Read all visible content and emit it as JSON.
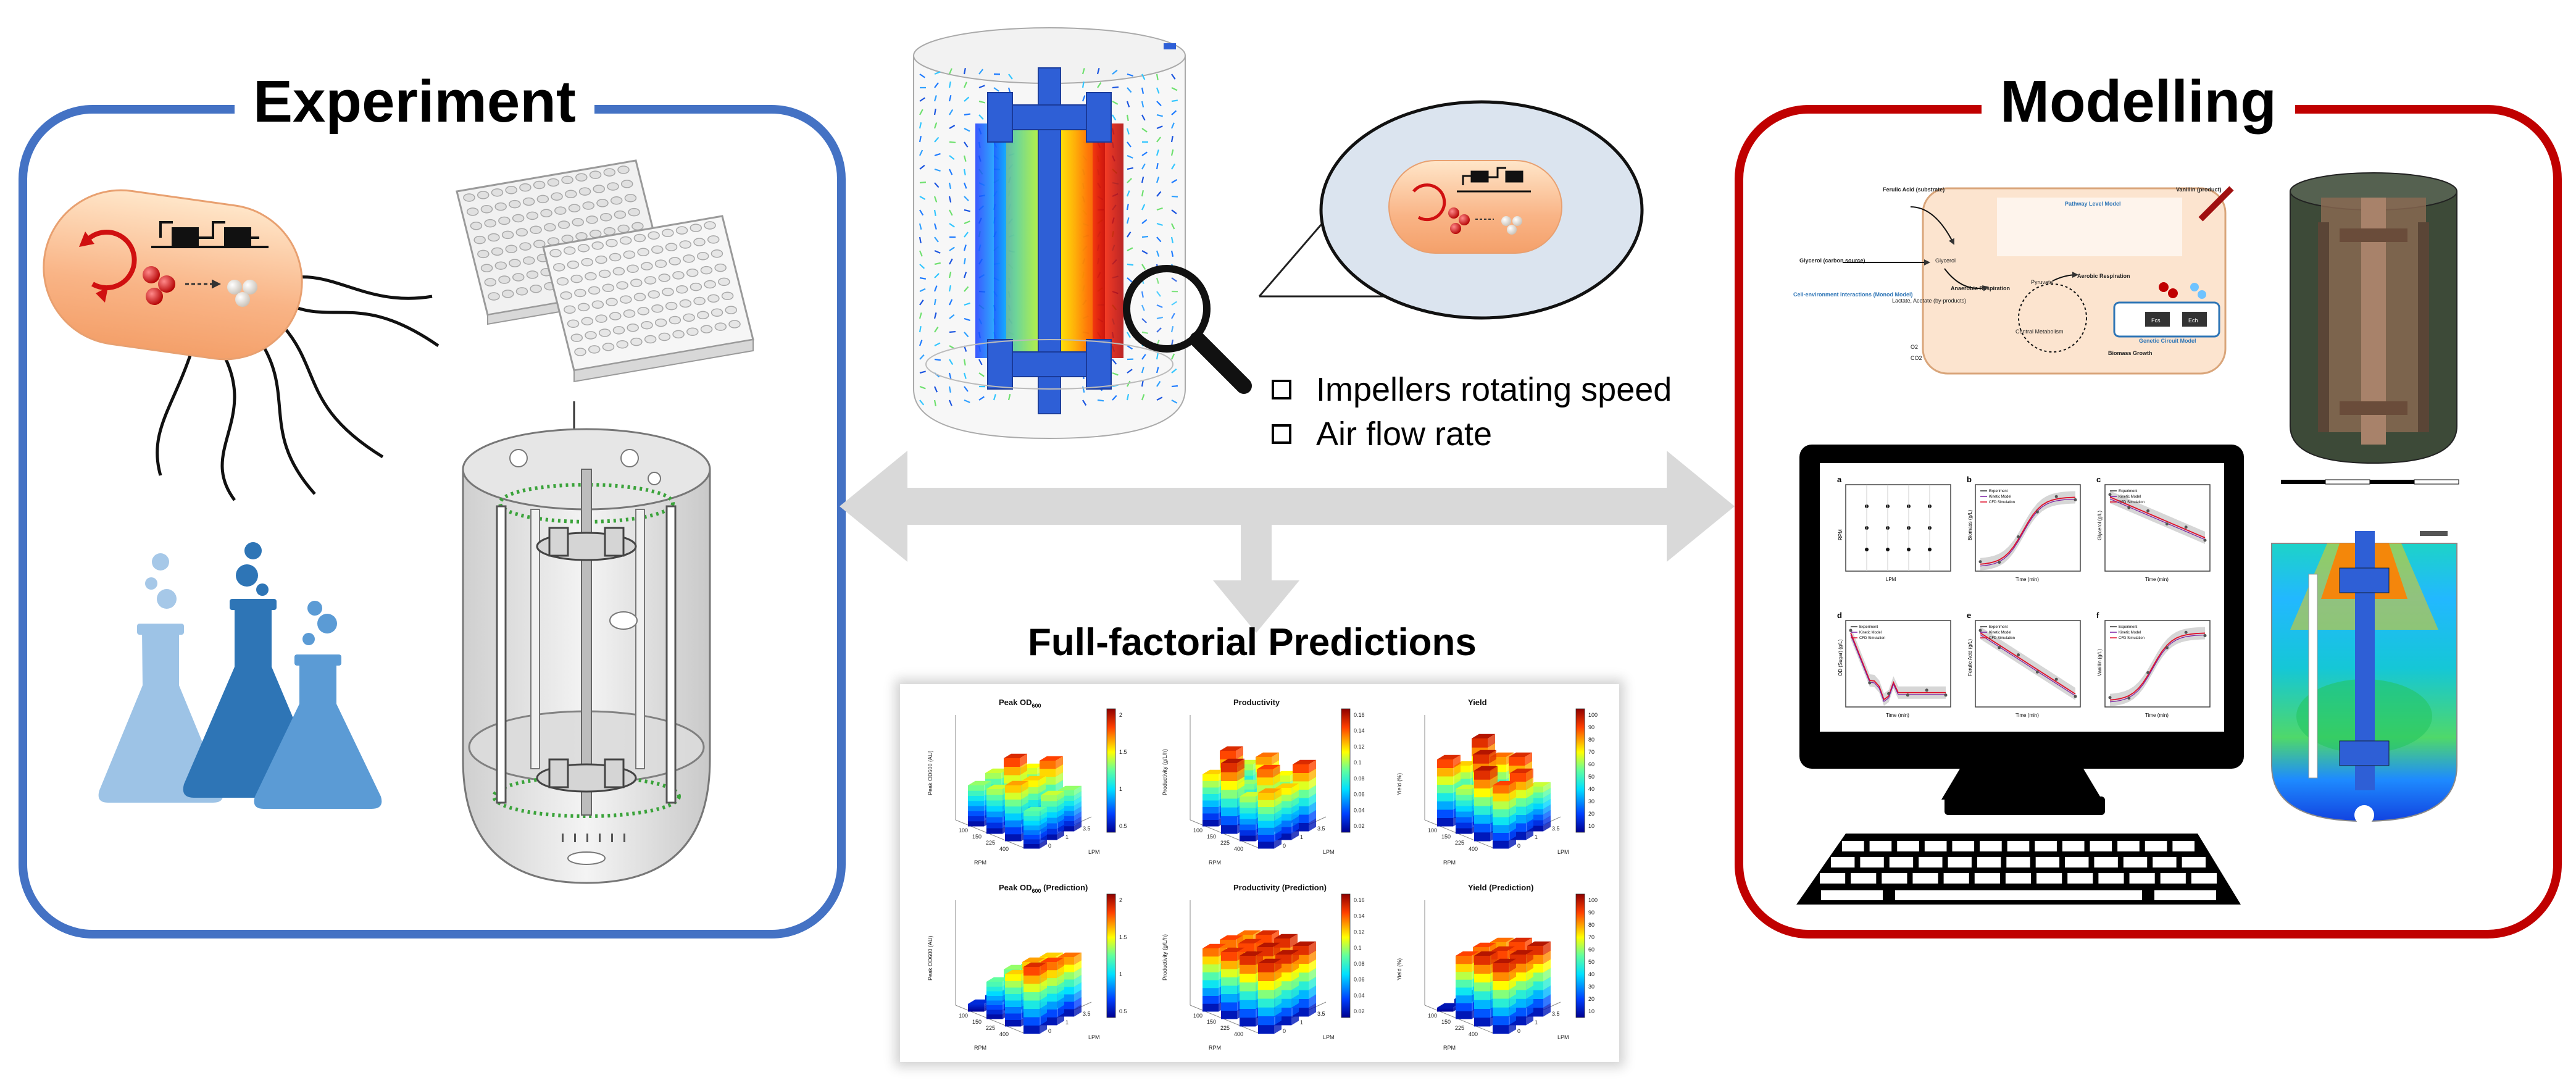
{
  "experiment": {
    "title": "Experiment"
  },
  "modelling": {
    "title": "Modelling",
    "pathway": {
      "ferulic_acid": "Ferulic Acid (substrate)",
      "vanillin": "Vanillin (product)",
      "pathway_model": "Pathway Level Model",
      "glycerol_source": "Glycerol (carbon source)",
      "glycerol": "Glycerol",
      "cell_env": "Cell-environment Interactions (Monod Model)",
      "byproducts": "Lactate, Acetate (by-products)",
      "anaerobic": "Anaerobic Respiration",
      "pyruvate": "Pyruvate",
      "aerobic": "Aerobic Respiration",
      "central": "Central Metabolism",
      "biomass": "Biomass Growth",
      "genetic": "Genetic Circuit Model",
      "fcs": "Fcs",
      "ech": "Ech",
      "o2": "O2",
      "co2": "CO2"
    },
    "monitor_panels": [
      {
        "letter": "a",
        "ylabel": "RPM",
        "xlabel": "LPM"
      },
      {
        "letter": "b",
        "ylabel": "Biomass (g/L)",
        "xlabel": "Time (min)"
      },
      {
        "letter": "c",
        "ylabel": "Glycerol (g/L)",
        "xlabel": "Time (min)"
      },
      {
        "letter": "d",
        "ylabel": "OD (Sugar) (g/L)",
        "xlabel": "Time (min)"
      },
      {
        "letter": "e",
        "ylabel": "Ferulic Acid (g/L)",
        "xlabel": "Time (min)"
      },
      {
        "letter": "f",
        "ylabel": "Vanillin (g/L)",
        "xlabel": "Time (min)"
      }
    ],
    "legend": [
      "Experiment",
      "Kinetic Model",
      "CFD Simulation"
    ]
  },
  "cfd": {
    "checklist": [
      "Impellers rotating speed",
      "Air flow rate"
    ]
  },
  "predictions": {
    "title": "Full-factorial Predictions",
    "panels": [
      {
        "title": "Peak OD",
        "sub": "600",
        "suffix": "",
        "zlabel": "Peak OD600 (AU)",
        "cb_ticks": [
          "2",
          "1.5",
          "1",
          "0.5"
        ]
      },
      {
        "title": "Productivity",
        "sub": "",
        "suffix": "",
        "zlabel": "Productivity (g/L/h)",
        "cb_ticks": [
          "0.16",
          "0.14",
          "0.12",
          "0.1",
          "0.08",
          "0.06",
          "0.04",
          "0.02"
        ]
      },
      {
        "title": "Yield",
        "sub": "",
        "suffix": "",
        "zlabel": "Yield (%)",
        "cb_ticks": [
          "100",
          "90",
          "80",
          "70",
          "60",
          "50",
          "40",
          "30",
          "20",
          "10"
        ]
      },
      {
        "title": "Peak OD",
        "sub": "600",
        "suffix": " (Prediction)",
        "zlabel": "Peak OD600 (AU)",
        "cb_ticks": [
          "2",
          "1.5",
          "1",
          "0.5"
        ]
      },
      {
        "title": "Productivity (Prediction)",
        "sub": "",
        "suffix": "",
        "zlabel": "Productivity (g/L/h)",
        "cb_ticks": [
          "0.16",
          "0.14",
          "0.12",
          "0.1",
          "0.08",
          "0.06",
          "0.04",
          "0.02"
        ]
      },
      {
        "title": "Yield (Prediction)",
        "sub": "",
        "suffix": "",
        "zlabel": "Yield (%)",
        "cb_ticks": [
          "100",
          "90",
          "80",
          "70",
          "60",
          "50",
          "40",
          "30",
          "20",
          "10"
        ]
      }
    ],
    "rpm_ticks": [
      "100",
      "150",
      "225",
      "400"
    ],
    "lpm_ticks": [
      "0",
      "1",
      "3.5"
    ],
    "rpm_label": "RPM",
    "lpm_label": "LPM"
  },
  "colors": {
    "experiment_border": "#4472C4",
    "modelling_border": "#C00000",
    "arrow": "#D9D9D9",
    "flask_light": "#9DC3E6",
    "flask_mid": "#2E75B6",
    "flask_dark": "#5B9BD5",
    "impeller": "#2E5FD6"
  },
  "icons": [
    "bacterium-icon",
    "well-plate-icon",
    "flask-icon",
    "bioreactor-icon",
    "magnifier-icon",
    "computer-monitor-icon",
    "keyboard-icon",
    "mesh-icon"
  ]
}
